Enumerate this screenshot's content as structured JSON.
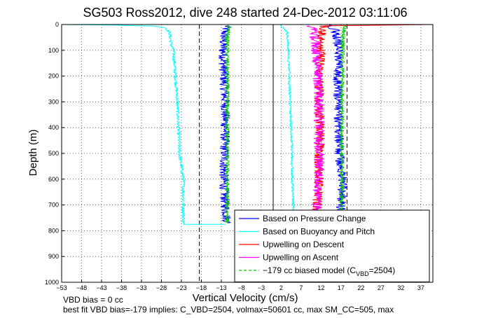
{
  "chart_data": {
    "type": "line",
    "title": "SG503 Ross2012, dive 248 started 24-Dec-2012 03:11:06",
    "xlabel": "Vertical Velocity (cm/s)",
    "ylabel": "Depth (m)",
    "xlim": [
      -53,
      40
    ],
    "ylim": [
      1000,
      0
    ],
    "y_reversed": true,
    "grid": true,
    "x_ticks": [
      -53,
      -48,
      -43,
      -38,
      -33,
      -28,
      -23,
      -18,
      -13,
      -8,
      -3,
      2,
      7,
      12,
      17,
      22,
      27,
      32,
      37
    ],
    "y_ticks": [
      0,
      100,
      200,
      300,
      400,
      500,
      600,
      700,
      800,
      900,
      1000
    ],
    "vertical_lines": [
      {
        "x": -18.5,
        "style": "dashed",
        "color": "#000000"
      },
      {
        "x": 0,
        "style": "solid",
        "color": "#000000"
      },
      {
        "x": 18.5,
        "style": "dashed",
        "color": "#000000"
      }
    ],
    "legend_position": "bottom-right",
    "legend": [
      {
        "label": "Based on Pressure Change",
        "color": "#0000ff",
        "style": "solid"
      },
      {
        "label": "Based on Buoyancy and Pitch",
        "color": "#00ffff",
        "style": "solid"
      },
      {
        "label": "Upwelling on Descent",
        "color": "#ff0000",
        "style": "solid"
      },
      {
        "label": "Upwelling on Ascent",
        "color": "#ff00ff",
        "style": "solid"
      },
      {
        "label": "−179 cc biased model (C",
        "sub": "VBD",
        "label_tail": "=2504)",
        "color": "#00cc00",
        "style": "dashed"
      }
    ],
    "series": [
      {
        "name": "Based on Pressure Change",
        "color": "#0000ff",
        "noise": 1.2,
        "points": [
          [
            -11.5,
            5
          ],
          [
            -12,
            20
          ],
          [
            -12.5,
            60
          ],
          [
            -12.5,
            120
          ],
          [
            -12.3,
            200
          ],
          [
            -12,
            300
          ],
          [
            -12,
            400
          ],
          [
            -12.2,
            500
          ],
          [
            -12.4,
            600
          ],
          [
            -12,
            700
          ],
          [
            -11.5,
            770
          ]
        ]
      },
      {
        "name": "Based on Buoyancy and Pitch",
        "color": "#00ffff",
        "noise": 0.4,
        "points": [
          [
            -53,
            0
          ],
          [
            -40,
            2
          ],
          [
            -30,
            6
          ],
          [
            -27,
            12
          ],
          [
            -26,
            30
          ],
          [
            -25.5,
            80
          ],
          [
            -25,
            100
          ],
          [
            -24,
            300
          ],
          [
            -23.5,
            500
          ],
          [
            -22.5,
            600
          ],
          [
            -22.5,
            700
          ],
          [
            -22.5,
            775
          ],
          [
            -12,
            775
          ]
        ]
      },
      {
        "name": "Based on Pressure Change",
        "color": "#0000ff",
        "noise": 1.2,
        "points": [
          [
            17,
            770
          ],
          [
            17,
            700
          ],
          [
            17.5,
            600
          ],
          [
            16.5,
            500
          ],
          [
            16.5,
            400
          ],
          [
            16.3,
            300
          ],
          [
            16.2,
            200
          ],
          [
            16.5,
            120
          ],
          [
            16,
            60
          ],
          [
            15.5,
            20
          ],
          [
            14,
            2
          ]
        ]
      },
      {
        "name": "Based on Buoyancy and Pitch",
        "color": "#00ffff",
        "noise": 0.3,
        "points": [
          [
            5.5,
            770
          ],
          [
            5,
            700
          ],
          [
            4.8,
            600
          ],
          [
            4.7,
            500
          ],
          [
            4.5,
            400
          ],
          [
            4.2,
            300
          ],
          [
            4,
            200
          ],
          [
            3.8,
            100
          ],
          [
            3.5,
            30
          ],
          [
            2,
            2
          ]
        ]
      },
      {
        "name": "Upwelling on Descent",
        "color": "#ff0000",
        "noise": 1.2,
        "points": [
          [
            11,
            770
          ],
          [
            11,
            700
          ],
          [
            11.5,
            600
          ],
          [
            11.5,
            500
          ],
          [
            11.8,
            400
          ],
          [
            11.5,
            300
          ],
          [
            11.5,
            200
          ],
          [
            12,
            120
          ],
          [
            12,
            60
          ],
          [
            12,
            20
          ],
          [
            13,
            5
          ],
          [
            40,
            0
          ]
        ]
      },
      {
        "name": "Upwelling on Ascent",
        "color": "#ff00ff",
        "noise": 1.3,
        "points": [
          [
            11,
            770
          ],
          [
            11,
            700
          ],
          [
            11.5,
            600
          ],
          [
            11.5,
            500
          ],
          [
            11.5,
            400
          ],
          [
            11.5,
            300
          ],
          [
            11.2,
            200
          ],
          [
            11,
            120
          ],
          [
            10.5,
            60
          ],
          [
            10,
            20
          ],
          [
            9,
            5
          ]
        ]
      },
      {
        "name": "−179 cc biased model (CVBD=2504)",
        "color": "#00cc00",
        "noise": 0.5,
        "points": [
          [
            -11,
            5
          ],
          [
            -11.5,
            50
          ],
          [
            -11.5,
            200
          ],
          [
            -11.5,
            400
          ],
          [
            -11.5,
            600
          ],
          [
            -11.5,
            770
          ]
        ]
      },
      {
        "name": "−179 cc biased model (CVBD=2504)",
        "color": "#00cc00",
        "noise": 0.5,
        "points": [
          [
            17,
            770
          ],
          [
            17.2,
            600
          ],
          [
            17.2,
            400
          ],
          [
            17.3,
            200
          ],
          [
            17.5,
            50
          ],
          [
            18,
            5
          ]
        ]
      }
    ]
  },
  "footer": {
    "line1": "VBD bias = 0 cc",
    "line2": "best fit VBD bias=-179 implies: C_VBD=2504, volmax=50601 cc, max SM_CC=505, max"
  }
}
